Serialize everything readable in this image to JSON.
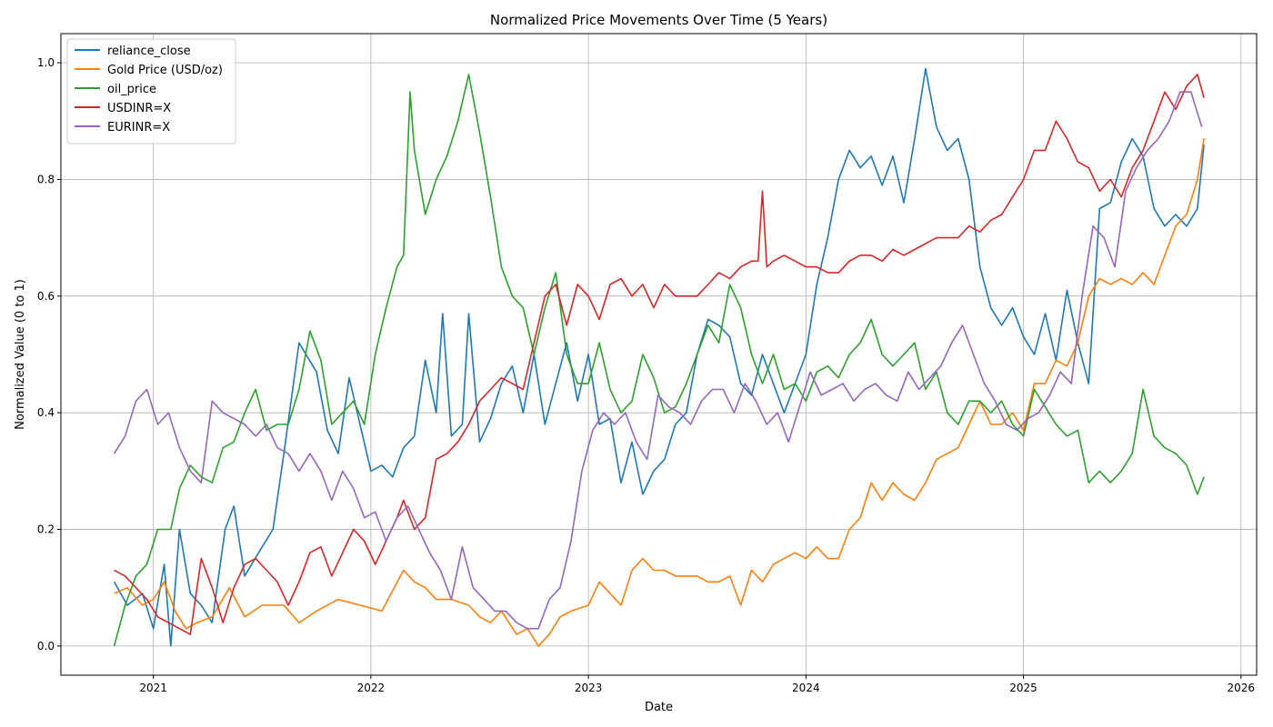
{
  "chart_data": {
    "type": "line",
    "title": "Normalized Price Movements Over Time (5 Years)",
    "xlabel": "Date",
    "ylabel": "Normalized Value (0 to 1)",
    "xlim": [
      2020.575,
      2026.072
    ],
    "ylim": [
      -0.05,
      1.05
    ],
    "x_ticks": [
      {
        "value": 2021,
        "label": "2021"
      },
      {
        "value": 2022,
        "label": "2022"
      },
      {
        "value": 2023,
        "label": "2023"
      },
      {
        "value": 2024,
        "label": "2024"
      },
      {
        "value": 2025,
        "label": "2025"
      },
      {
        "value": 2026,
        "label": "2026"
      }
    ],
    "y_ticks": [
      {
        "value": 0.0,
        "label": "0.0"
      },
      {
        "value": 0.2,
        "label": "0.2"
      },
      {
        "value": 0.4,
        "label": "0.4"
      },
      {
        "value": 0.6,
        "label": "0.6"
      },
      {
        "value": 0.8,
        "label": "0.8"
      },
      {
        "value": 1.0,
        "label": "1.0"
      }
    ],
    "grid": true,
    "legend_position": "top-left",
    "series": [
      {
        "name": "reliance_close",
        "color": "#1f77b4",
        "x": [
          2020.82,
          2020.88,
          2020.95,
          2021.0,
          2021.05,
          2021.08,
          2021.12,
          2021.17,
          2021.22,
          2021.27,
          2021.33,
          2021.37,
          2021.42,
          2021.5,
          2021.55,
          2021.6,
          2021.67,
          2021.75,
          2021.8,
          2021.85,
          2021.9,
          2021.95,
          2022.0,
          2022.05,
          2022.1,
          2022.15,
          2022.2,
          2022.25,
          2022.3,
          2022.33,
          2022.37,
          2022.42,
          2022.45,
          2022.5,
          2022.55,
          2022.6,
          2022.65,
          2022.7,
          2022.75,
          2022.8,
          2022.85,
          2022.9,
          2022.95,
          2023.0,
          2023.05,
          2023.1,
          2023.15,
          2023.2,
          2023.25,
          2023.3,
          2023.35,
          2023.4,
          2023.45,
          2023.5,
          2023.55,
          2023.6,
          2023.65,
          2023.7,
          2023.75,
          2023.8,
          2023.85,
          2023.9,
          2023.95,
          2024.0,
          2024.05,
          2024.1,
          2024.15,
          2024.2,
          2024.25,
          2024.3,
          2024.35,
          2024.4,
          2024.45,
          2024.5,
          2024.55,
          2024.6,
          2024.65,
          2024.7,
          2024.75,
          2024.8,
          2024.85,
          2024.9,
          2024.95,
          2025.0,
          2025.05,
          2025.1,
          2025.15,
          2025.2,
          2025.25,
          2025.3,
          2025.35,
          2025.4,
          2025.45,
          2025.5,
          2025.55,
          2025.6,
          2025.65,
          2025.7,
          2025.75,
          2025.8,
          2025.83
        ],
        "y": [
          0.11,
          0.07,
          0.09,
          0.03,
          0.14,
          0.0,
          0.2,
          0.09,
          0.07,
          0.04,
          0.2,
          0.24,
          0.12,
          0.17,
          0.2,
          0.33,
          0.52,
          0.47,
          0.37,
          0.33,
          0.46,
          0.38,
          0.3,
          0.31,
          0.29,
          0.34,
          0.36,
          0.49,
          0.4,
          0.57,
          0.36,
          0.38,
          0.57,
          0.35,
          0.39,
          0.45,
          0.48,
          0.4,
          0.5,
          0.38,
          0.45,
          0.52,
          0.42,
          0.5,
          0.38,
          0.39,
          0.28,
          0.35,
          0.26,
          0.3,
          0.32,
          0.38,
          0.4,
          0.5,
          0.56,
          0.55,
          0.53,
          0.45,
          0.43,
          0.5,
          0.45,
          0.4,
          0.45,
          0.5,
          0.62,
          0.7,
          0.8,
          0.85,
          0.82,
          0.84,
          0.79,
          0.84,
          0.76,
          0.87,
          0.99,
          0.89,
          0.85,
          0.87,
          0.8,
          0.65,
          0.58,
          0.55,
          0.58,
          0.53,
          0.5,
          0.57,
          0.49,
          0.61,
          0.52,
          0.45,
          0.75,
          0.76,
          0.83,
          0.87,
          0.84,
          0.75,
          0.72,
          0.74,
          0.72,
          0.75,
          0.86
        ]
      },
      {
        "name": "Gold Price (USD/oz)",
        "color": "#ff7f0e",
        "x": [
          2020.82,
          2020.88,
          2020.95,
          2021.0,
          2021.05,
          2021.1,
          2021.15,
          2021.2,
          2021.27,
          2021.35,
          2021.42,
          2021.5,
          2021.6,
          2021.67,
          2021.75,
          2021.85,
          2021.95,
          2022.05,
          2022.15,
          2022.2,
          2022.25,
          2022.3,
          2022.37,
          2022.45,
          2022.5,
          2022.55,
          2022.6,
          2022.67,
          2022.72,
          2022.77,
          2022.82,
          2022.87,
          2022.92,
          2023.0,
          2023.05,
          2023.1,
          2023.15,
          2023.2,
          2023.25,
          2023.3,
          2023.35,
          2023.4,
          2023.45,
          2023.5,
          2023.55,
          2023.6,
          2023.65,
          2023.7,
          2023.75,
          2023.8,
          2023.85,
          2023.9,
          2023.95,
          2024.0,
          2024.05,
          2024.1,
          2024.15,
          2024.2,
          2024.25,
          2024.3,
          2024.35,
          2024.4,
          2024.45,
          2024.5,
          2024.55,
          2024.6,
          2024.65,
          2024.7,
          2024.75,
          2024.8,
          2024.85,
          2024.9,
          2024.95,
          2025.0,
          2025.05,
          2025.1,
          2025.15,
          2025.2,
          2025.25,
          2025.3,
          2025.35,
          2025.4,
          2025.45,
          2025.5,
          2025.55,
          2025.6,
          2025.65,
          2025.7,
          2025.75,
          2025.8,
          2025.83
        ],
        "y": [
          0.09,
          0.1,
          0.07,
          0.08,
          0.11,
          0.06,
          0.03,
          0.04,
          0.05,
          0.1,
          0.05,
          0.07,
          0.07,
          0.04,
          0.06,
          0.08,
          0.07,
          0.06,
          0.13,
          0.11,
          0.1,
          0.08,
          0.08,
          0.07,
          0.05,
          0.04,
          0.06,
          0.02,
          0.03,
          0.0,
          0.02,
          0.05,
          0.06,
          0.07,
          0.11,
          0.09,
          0.07,
          0.13,
          0.15,
          0.13,
          0.13,
          0.12,
          0.12,
          0.12,
          0.11,
          0.11,
          0.12,
          0.07,
          0.13,
          0.11,
          0.14,
          0.15,
          0.16,
          0.15,
          0.17,
          0.15,
          0.15,
          0.2,
          0.22,
          0.28,
          0.25,
          0.28,
          0.26,
          0.25,
          0.28,
          0.32,
          0.33,
          0.34,
          0.38,
          0.42,
          0.38,
          0.38,
          0.4,
          0.37,
          0.45,
          0.45,
          0.49,
          0.48,
          0.52,
          0.6,
          0.63,
          0.62,
          0.63,
          0.62,
          0.64,
          0.62,
          0.67,
          0.72,
          0.74,
          0.8,
          0.87
        ]
      },
      {
        "name": "oil_price",
        "color": "#2ca02c",
        "x": [
          2020.82,
          2020.87,
          2020.92,
          2020.97,
          2021.02,
          2021.08,
          2021.12,
          2021.17,
          2021.22,
          2021.27,
          2021.32,
          2021.37,
          2021.42,
          2021.47,
          2021.52,
          2021.57,
          2021.62,
          2021.67,
          2021.72,
          2021.77,
          2021.82,
          2021.87,
          2021.92,
          2021.97,
          2022.02,
          2022.07,
          2022.12,
          2022.15,
          2022.18,
          2022.2,
          2022.25,
          2022.3,
          2022.35,
          2022.4,
          2022.45,
          2022.5,
          2022.55,
          2022.6,
          2022.65,
          2022.7,
          2022.75,
          2022.8,
          2022.85,
          2022.9,
          2022.95,
          2023.0,
          2023.05,
          2023.1,
          2023.15,
          2023.2,
          2023.25,
          2023.3,
          2023.35,
          2023.4,
          2023.45,
          2023.5,
          2023.55,
          2023.6,
          2023.65,
          2023.7,
          2023.75,
          2023.8,
          2023.85,
          2023.9,
          2023.95,
          2024.0,
          2024.05,
          2024.1,
          2024.15,
          2024.2,
          2024.25,
          2024.3,
          2024.35,
          2024.4,
          2024.45,
          2024.5,
          2024.55,
          2024.6,
          2024.65,
          2024.7,
          2024.75,
          2024.8,
          2024.85,
          2024.9,
          2024.95,
          2025.0,
          2025.05,
          2025.1,
          2025.15,
          2025.2,
          2025.25,
          2025.3,
          2025.35,
          2025.4,
          2025.45,
          2025.5,
          2025.55,
          2025.6,
          2025.65,
          2025.7,
          2025.75,
          2025.8,
          2025.83
        ],
        "y": [
          0.0,
          0.07,
          0.12,
          0.14,
          0.2,
          0.2,
          0.27,
          0.31,
          0.29,
          0.28,
          0.34,
          0.35,
          0.4,
          0.44,
          0.37,
          0.38,
          0.38,
          0.44,
          0.54,
          0.49,
          0.38,
          0.4,
          0.42,
          0.38,
          0.5,
          0.58,
          0.65,
          0.67,
          0.95,
          0.85,
          0.74,
          0.8,
          0.84,
          0.9,
          0.98,
          0.88,
          0.77,
          0.65,
          0.6,
          0.58,
          0.5,
          0.58,
          0.64,
          0.5,
          0.45,
          0.45,
          0.52,
          0.44,
          0.4,
          0.42,
          0.5,
          0.46,
          0.4,
          0.41,
          0.45,
          0.5,
          0.55,
          0.52,
          0.62,
          0.58,
          0.5,
          0.45,
          0.5,
          0.44,
          0.45,
          0.42,
          0.47,
          0.48,
          0.46,
          0.5,
          0.52,
          0.56,
          0.5,
          0.48,
          0.5,
          0.52,
          0.44,
          0.47,
          0.4,
          0.38,
          0.42,
          0.42,
          0.4,
          0.42,
          0.38,
          0.36,
          0.44,
          0.41,
          0.38,
          0.36,
          0.37,
          0.28,
          0.3,
          0.28,
          0.3,
          0.33,
          0.44,
          0.36,
          0.34,
          0.33,
          0.31,
          0.26,
          0.29
        ]
      },
      {
        "name": "USDINR=X",
        "color": "#d62728",
        "x": [
          2020.82,
          2020.87,
          2020.92,
          2020.97,
          2021.02,
          2021.07,
          2021.12,
          2021.17,
          2021.22,
          2021.27,
          2021.32,
          2021.37,
          2021.42,
          2021.47,
          2021.52,
          2021.57,
          2021.62,
          2021.67,
          2021.72,
          2021.77,
          2021.82,
          2021.87,
          2021.92,
          2021.97,
          2022.02,
          2022.07,
          2022.12,
          2022.15,
          2022.2,
          2022.25,
          2022.3,
          2022.35,
          2022.4,
          2022.45,
          2022.5,
          2022.55,
          2022.6,
          2022.65,
          2022.7,
          2022.75,
          2022.8,
          2022.85,
          2022.9,
          2022.95,
          2023.0,
          2023.05,
          2023.1,
          2023.15,
          2023.2,
          2023.25,
          2023.3,
          2023.35,
          2023.4,
          2023.45,
          2023.5,
          2023.55,
          2023.6,
          2023.65,
          2023.7,
          2023.75,
          2023.78,
          2023.8,
          2023.82,
          2023.85,
          2023.9,
          2023.95,
          2024.0,
          2024.05,
          2024.1,
          2024.15,
          2024.2,
          2024.25,
          2024.3,
          2024.35,
          2024.4,
          2024.45,
          2024.5,
          2024.55,
          2024.6,
          2024.65,
          2024.7,
          2024.75,
          2024.8,
          2024.85,
          2024.9,
          2024.95,
          2025.0,
          2025.05,
          2025.1,
          2025.15,
          2025.2,
          2025.25,
          2025.3,
          2025.35,
          2025.4,
          2025.45,
          2025.5,
          2025.55,
          2025.6,
          2025.65,
          2025.7,
          2025.75,
          2025.8,
          2025.83
        ],
        "y": [
          0.13,
          0.12,
          0.1,
          0.08,
          0.05,
          0.04,
          0.03,
          0.02,
          0.15,
          0.1,
          0.04,
          0.1,
          0.14,
          0.15,
          0.13,
          0.11,
          0.07,
          0.11,
          0.16,
          0.17,
          0.12,
          0.16,
          0.2,
          0.18,
          0.14,
          0.18,
          0.22,
          0.25,
          0.2,
          0.22,
          0.32,
          0.33,
          0.35,
          0.38,
          0.42,
          0.44,
          0.46,
          0.45,
          0.44,
          0.52,
          0.6,
          0.62,
          0.55,
          0.62,
          0.6,
          0.56,
          0.62,
          0.63,
          0.6,
          0.62,
          0.58,
          0.62,
          0.6,
          0.6,
          0.6,
          0.62,
          0.64,
          0.63,
          0.65,
          0.66,
          0.66,
          0.78,
          0.65,
          0.66,
          0.67,
          0.66,
          0.65,
          0.65,
          0.64,
          0.64,
          0.66,
          0.67,
          0.67,
          0.66,
          0.68,
          0.67,
          0.68,
          0.69,
          0.7,
          0.7,
          0.7,
          0.72,
          0.71,
          0.73,
          0.74,
          0.77,
          0.8,
          0.85,
          0.85,
          0.9,
          0.87,
          0.83,
          0.82,
          0.78,
          0.8,
          0.77,
          0.82,
          0.85,
          0.9,
          0.95,
          0.92,
          0.96,
          0.98,
          0.94
        ]
      },
      {
        "name": "EURINR=X",
        "color": "#9467bd",
        "x": [
          2020.82,
          2020.87,
          2020.92,
          2020.97,
          2021.02,
          2021.07,
          2021.12,
          2021.17,
          2021.22,
          2021.27,
          2021.32,
          2021.37,
          2021.42,
          2021.47,
          2021.52,
          2021.57,
          2021.62,
          2021.67,
          2021.72,
          2021.77,
          2021.82,
          2021.87,
          2021.92,
          2021.97,
          2022.02,
          2022.07,
          2022.12,
          2022.17,
          2022.22,
          2022.27,
          2022.32,
          2022.37,
          2022.42,
          2022.47,
          2022.52,
          2022.57,
          2022.62,
          2022.67,
          2022.72,
          2022.77,
          2022.82,
          2022.87,
          2022.92,
          2022.97,
          2023.02,
          2023.07,
          2023.12,
          2023.17,
          2023.22,
          2023.27,
          2023.32,
          2023.37,
          2023.42,
          2023.47,
          2023.52,
          2023.57,
          2023.62,
          2023.67,
          2023.72,
          2023.77,
          2023.82,
          2023.87,
          2023.92,
          2023.97,
          2024.02,
          2024.07,
          2024.12,
          2024.17,
          2024.22,
          2024.27,
          2024.32,
          2024.37,
          2024.42,
          2024.47,
          2024.52,
          2024.57,
          2024.62,
          2024.67,
          2024.72,
          2024.77,
          2024.82,
          2024.87,
          2024.92,
          2024.97,
          2025.02,
          2025.07,
          2025.12,
          2025.17,
          2025.22,
          2025.27,
          2025.32,
          2025.37,
          2025.42,
          2025.47,
          2025.52,
          2025.57,
          2025.62,
          2025.67,
          2025.72,
          2025.77,
          2025.82
        ],
        "y": [
          0.33,
          0.36,
          0.42,
          0.44,
          0.38,
          0.4,
          0.34,
          0.3,
          0.28,
          0.42,
          0.4,
          0.39,
          0.38,
          0.36,
          0.38,
          0.34,
          0.33,
          0.3,
          0.33,
          0.3,
          0.25,
          0.3,
          0.27,
          0.22,
          0.23,
          0.18,
          0.22,
          0.24,
          0.2,
          0.16,
          0.13,
          0.08,
          0.17,
          0.1,
          0.08,
          0.06,
          0.06,
          0.04,
          0.03,
          0.03,
          0.08,
          0.1,
          0.18,
          0.3,
          0.37,
          0.4,
          0.38,
          0.4,
          0.35,
          0.32,
          0.43,
          0.41,
          0.4,
          0.38,
          0.42,
          0.44,
          0.44,
          0.4,
          0.45,
          0.42,
          0.38,
          0.4,
          0.35,
          0.41,
          0.47,
          0.43,
          0.44,
          0.45,
          0.42,
          0.44,
          0.45,
          0.43,
          0.42,
          0.47,
          0.44,
          0.46,
          0.48,
          0.52,
          0.55,
          0.5,
          0.45,
          0.42,
          0.38,
          0.37,
          0.39,
          0.4,
          0.43,
          0.47,
          0.45,
          0.6,
          0.72,
          0.7,
          0.65,
          0.78,
          0.82,
          0.85,
          0.87,
          0.9,
          0.95,
          0.95,
          0.89
        ]
      }
    ]
  }
}
